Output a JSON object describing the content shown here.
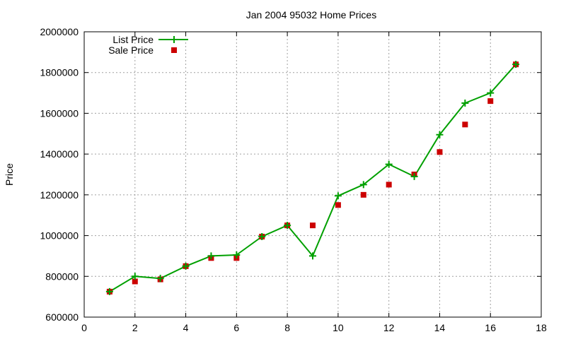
{
  "chart_data": {
    "type": "line",
    "title": "Jan 2004 95032 Home Prices",
    "xlabel": "",
    "ylabel": "Price",
    "xlim": [
      0,
      18
    ],
    "ylim": [
      600000,
      2000000
    ],
    "x_ticks": [
      0,
      2,
      4,
      6,
      8,
      10,
      12,
      14,
      16,
      18
    ],
    "y_ticks": [
      600000,
      800000,
      1000000,
      1200000,
      1400000,
      1600000,
      1800000,
      2000000
    ],
    "x_tick_labels": [
      "0",
      "2",
      "4",
      "6",
      "8",
      "10",
      "12",
      "14",
      "16",
      "18"
    ],
    "y_tick_labels": [
      "600000",
      "800000",
      "1000000",
      "1200000",
      "1400000",
      "1600000",
      "1800000",
      "2000000"
    ],
    "grid": true,
    "legend_position": "top-left",
    "series": [
      {
        "name": "List Price",
        "style": "line-with-plus-markers",
        "color": "#00a000",
        "x": [
          1,
          2,
          3,
          4,
          5,
          6,
          7,
          8,
          9,
          10,
          11,
          12,
          13,
          14,
          15,
          16,
          17
        ],
        "values": [
          725000,
          800000,
          790000,
          850000,
          900000,
          905000,
          995000,
          1050000,
          900000,
          1195000,
          1250000,
          1350000,
          1290000,
          1495000,
          1650000,
          1700000,
          1840000
        ]
      },
      {
        "name": "Sale Price",
        "style": "square-markers",
        "color": "#cc0000",
        "x": [
          1,
          2,
          3,
          4,
          5,
          6,
          7,
          8,
          9,
          10,
          11,
          12,
          13,
          14,
          15,
          16,
          17
        ],
        "values": [
          725000,
          775000,
          785000,
          850000,
          890000,
          890000,
          995000,
          1050000,
          1050000,
          1150000,
          1200000,
          1250000,
          1300000,
          1410000,
          1545000,
          1660000,
          1840000
        ]
      }
    ]
  }
}
